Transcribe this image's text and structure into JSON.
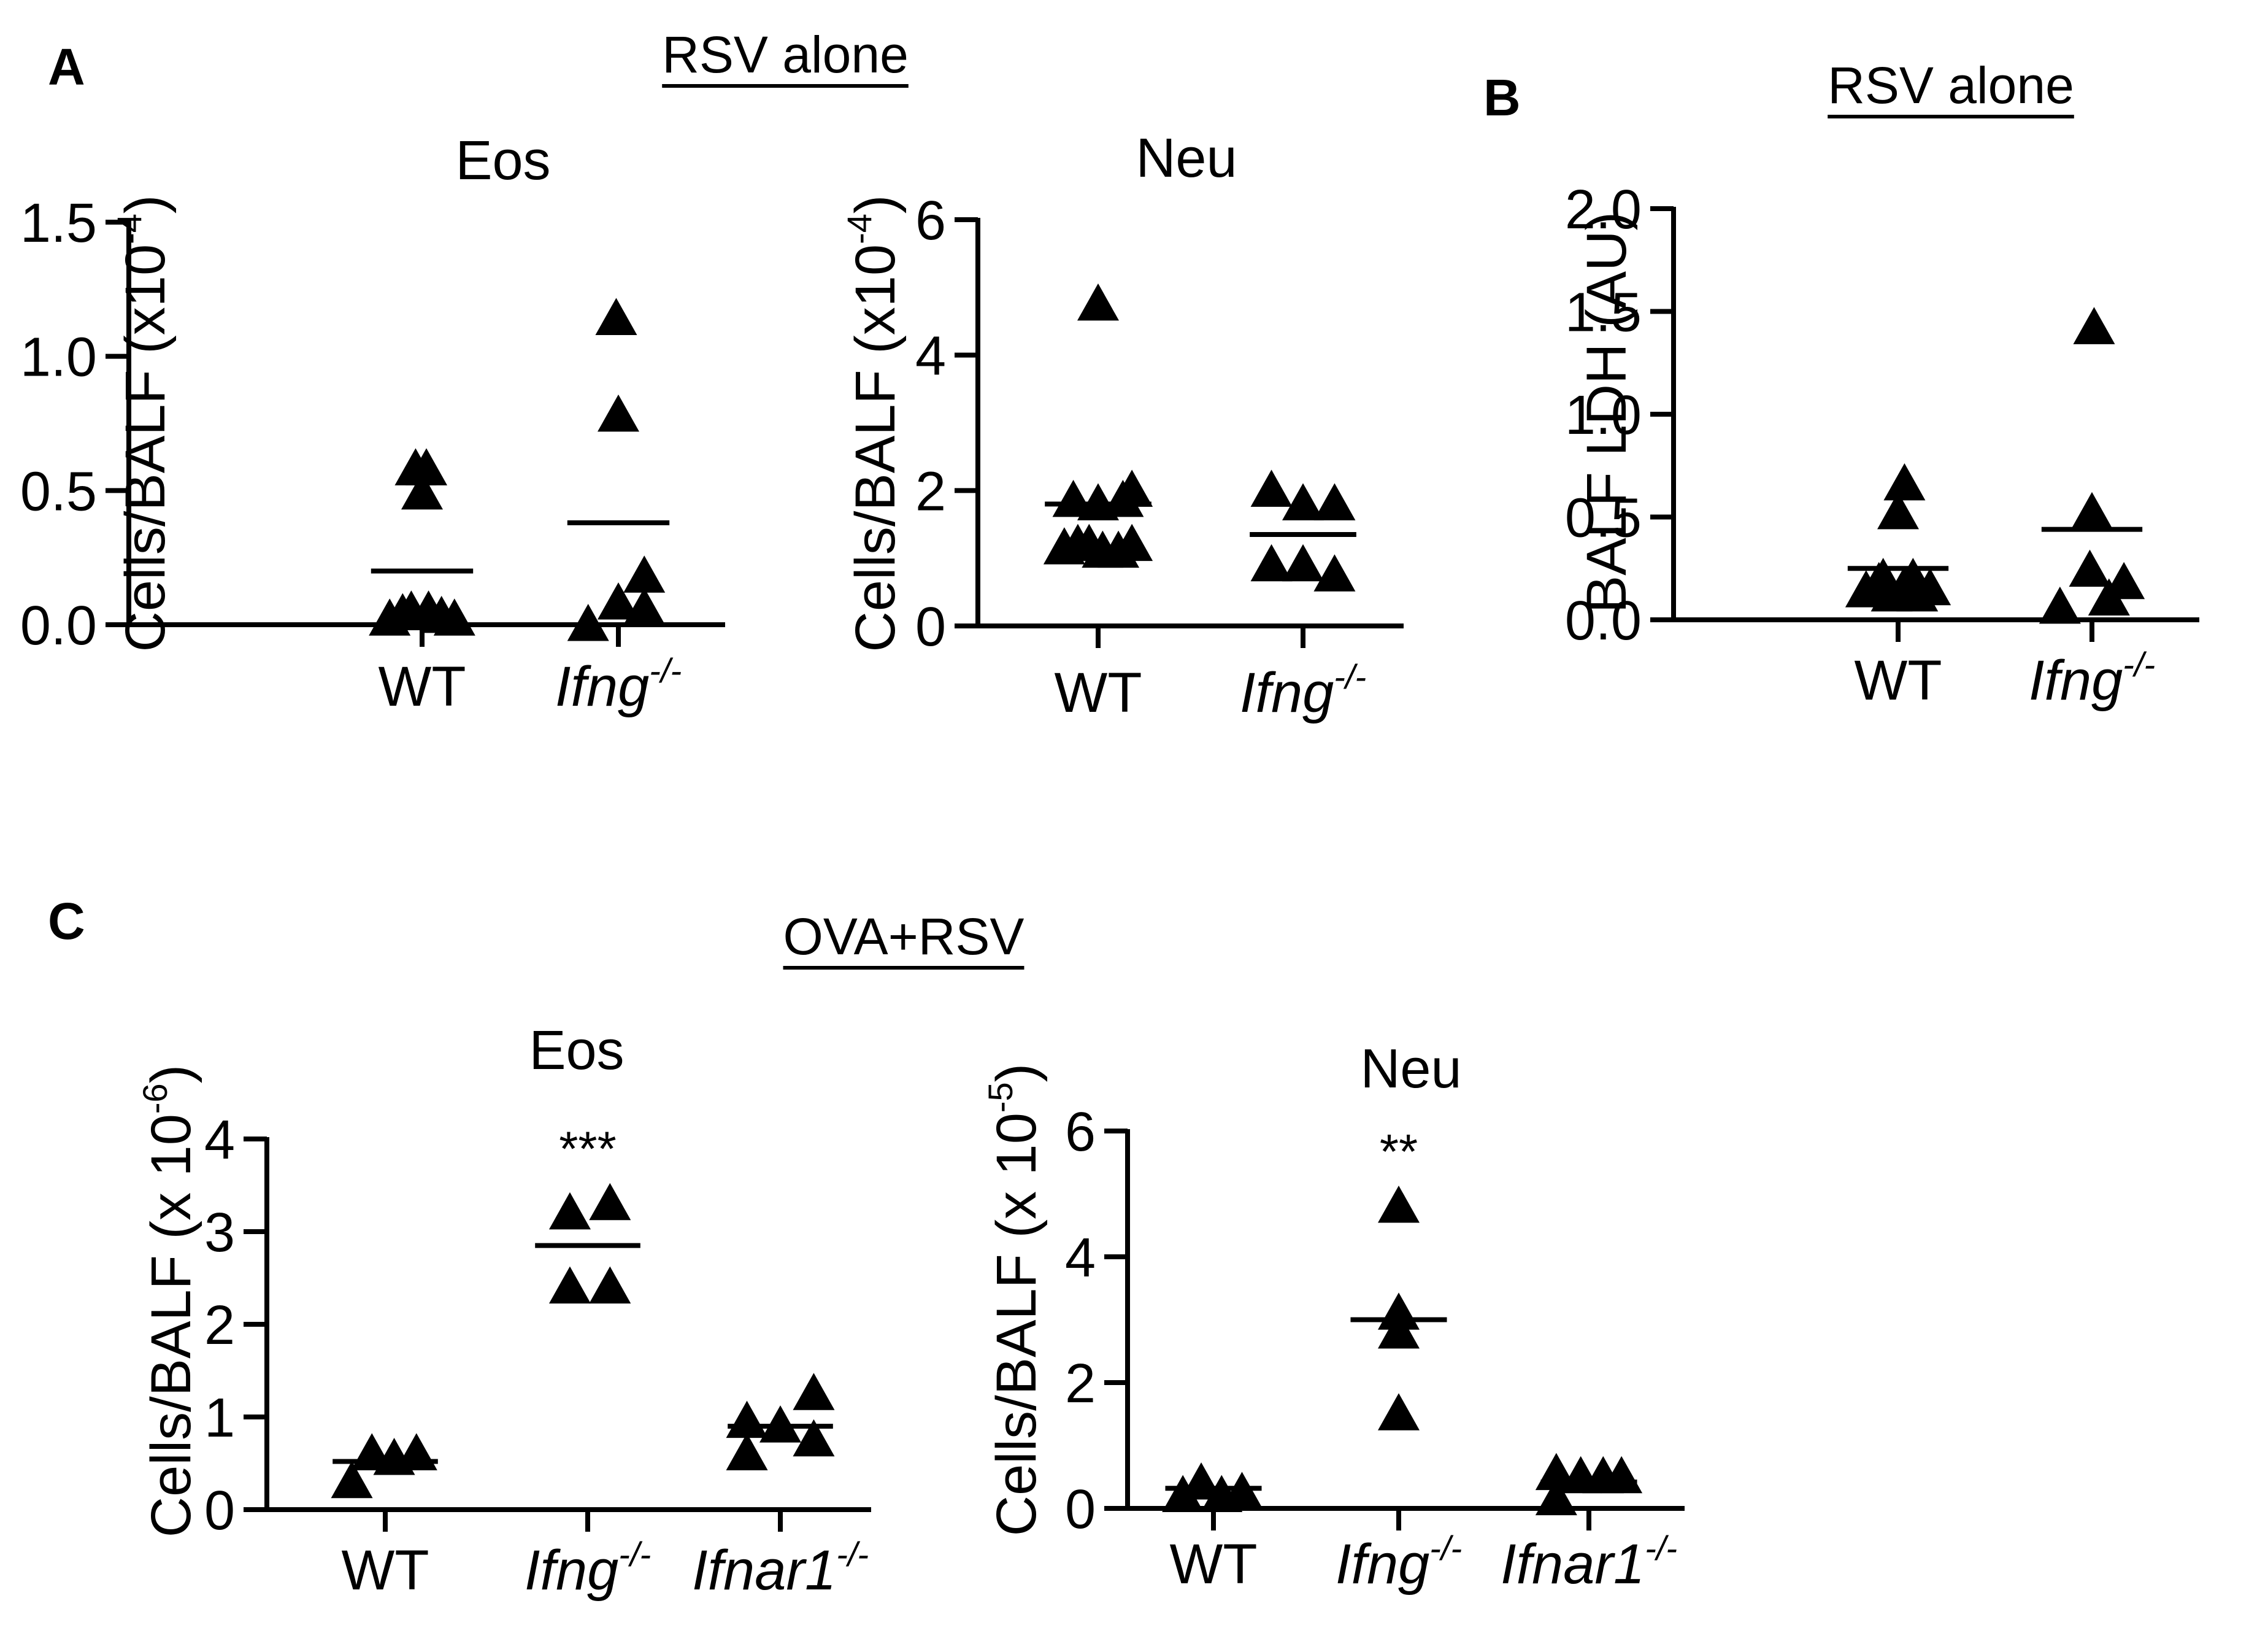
{
  "headers": [
    {
      "text": "RSV alone",
      "cx": 1280,
      "y": 118,
      "underline": true
    },
    {
      "text": "RSV alone",
      "cx": 3180,
      "y": 168,
      "underline": true
    },
    {
      "text": "OVA+RSV",
      "cx": 1473,
      "y": 1555,
      "underline": true
    }
  ],
  "panels": [
    {
      "letter": "A"
    },
    {
      "letter": "B"
    },
    {
      "letter": "C"
    }
  ],
  "chart_data": [
    {
      "type": "scatter",
      "panel": "A",
      "title": "Eos",
      "ylabel": {
        "main": "Cells/BALF (x10",
        "sup": "-4",
        "close": ")"
      },
      "ylim": [
        0,
        1.5
      ],
      "yticks": [
        "0.0",
        "0.5",
        "1.0",
        "1.5"
      ],
      "yticks_values": [
        0,
        0.5,
        1.0,
        1.5
      ],
      "categories": [
        {
          "main": "WT",
          "sup": "",
          "italic": false
        },
        {
          "main": "Ifng",
          "sup": "-/-",
          "italic": true
        }
      ],
      "series": [
        {
          "points": [
            [
              -0.3,
              0.02
            ],
            [
              -0.18,
              0.04
            ],
            [
              -0.06,
              0.58
            ],
            [
              0.04,
              0.58
            ],
            [
              0.0,
              0.49
            ],
            [
              -0.1,
              0.05
            ],
            [
              0.06,
              0.05
            ],
            [
              0.18,
              0.03
            ],
            [
              0.3,
              0.02
            ]
          ],
          "mean": 0.2
        },
        {
          "points": [
            [
              -0.28,
              0.0
            ],
            [
              -0.02,
              1.14
            ],
            [
              0.0,
              0.78
            ],
            [
              0.0,
              0.08
            ],
            [
              0.24,
              0.18
            ],
            [
              0.24,
              0.06
            ]
          ],
          "mean": 0.38
        }
      ],
      "markers": [
        null,
        null
      ]
    },
    {
      "type": "scatter",
      "panel": "A",
      "title": "Neu",
      "ylabel": {
        "main": "Cells/BALF (x10",
        "sup": "-4",
        "close": ")"
      },
      "ylim": [
        0,
        6
      ],
      "yticks": [
        "0",
        "2",
        "4",
        "6"
      ],
      "yticks_values": [
        0,
        2,
        4,
        6
      ],
      "categories": [
        {
          "main": "WT",
          "sup": "",
          "italic": false
        },
        {
          "main": "Ifng",
          "sup": "-/-",
          "italic": true
        }
      ],
      "series": [
        {
          "points": [
            [
              -0.3,
              1.15
            ],
            [
              -0.18,
              1.2
            ],
            [
              -0.08,
              1.2
            ],
            [
              0.04,
              1.1
            ],
            [
              0.18,
              1.1
            ],
            [
              0.3,
              1.2
            ],
            [
              -0.22,
              1.85
            ],
            [
              0.0,
              1.8
            ],
            [
              0.22,
              1.85
            ],
            [
              0.3,
              2.0
            ],
            [
              0.0,
              4.75
            ]
          ],
          "mean": 1.8
        },
        {
          "points": [
            [
              -0.28,
              2.0
            ],
            [
              -0.28,
              0.9
            ],
            [
              0.0,
              1.8
            ],
            [
              0.0,
              0.9
            ],
            [
              0.28,
              1.8
            ],
            [
              0.28,
              0.75
            ]
          ],
          "mean": 1.35
        }
      ],
      "markers": [
        null,
        null
      ]
    },
    {
      "type": "scatter",
      "panel": "B",
      "title": "",
      "ylabel": {
        "main": "BALF LDH (AU)",
        "sup": "",
        "close": ""
      },
      "ylim": [
        0,
        2.0
      ],
      "yticks": [
        "0.0",
        "0.5",
        "1.0",
        "1.5",
        "2.0"
      ],
      "yticks_values": [
        0,
        0.5,
        1.0,
        1.5,
        2.0
      ],
      "categories": [
        {
          "main": "WT",
          "sup": "",
          "italic": false
        },
        {
          "main": "Ifng",
          "sup": "-/-",
          "italic": true
        }
      ],
      "series": [
        {
          "points": [
            [
              -0.3,
              0.14
            ],
            [
              -0.18,
              0.18
            ],
            [
              -0.06,
              0.12
            ],
            [
              0.06,
              0.16
            ],
            [
              0.18,
              0.12
            ],
            [
              0.3,
              0.15
            ],
            [
              -0.14,
              0.2
            ],
            [
              0.14,
              0.2
            ],
            [
              0.0,
              0.52
            ],
            [
              0.06,
              0.66
            ]
          ],
          "mean": 0.25
        },
        {
          "points": [
            [
              -0.3,
              0.06
            ],
            [
              -0.02,
              0.24
            ],
            [
              0.0,
              0.52
            ],
            [
              0.02,
              1.42
            ],
            [
              0.16,
              0.1
            ],
            [
              0.3,
              0.18
            ]
          ],
          "mean": 0.44
        }
      ],
      "markers": [
        null,
        null
      ]
    },
    {
      "type": "scatter",
      "panel": "C",
      "title": "Eos",
      "ylabel": {
        "main": "Cells/BALF (x 10",
        "sup": "-6",
        "close": ")"
      },
      "ylim": [
        0,
        4
      ],
      "yticks": [
        "0",
        "1",
        "2",
        "3",
        "4"
      ],
      "yticks_values": [
        0,
        1,
        2,
        3,
        4
      ],
      "categories": [
        {
          "main": "WT",
          "sup": "",
          "italic": false
        },
        {
          "main": "Ifng",
          "sup": "-/-",
          "italic": true
        },
        {
          "main": "Ifnar1",
          "sup": "-/-",
          "italic": true
        }
      ],
      "series": [
        {
          "points": [
            [
              -0.3,
              0.3
            ],
            [
              -0.12,
              0.6
            ],
            [
              0.08,
              0.55
            ],
            [
              0.28,
              0.6
            ]
          ],
          "mean": 0.52
        },
        {
          "points": [
            [
              -0.16,
              2.4
            ],
            [
              0.2,
              2.4
            ],
            [
              -0.16,
              3.2
            ],
            [
              0.2,
              3.3
            ]
          ],
          "mean": 2.85
        },
        {
          "points": [
            [
              -0.3,
              0.6
            ],
            [
              -0.3,
              0.95
            ],
            [
              0.0,
              0.9
            ],
            [
              0.3,
              0.75
            ],
            [
              0.3,
              1.25
            ]
          ],
          "mean": 0.9
        }
      ],
      "markers": [
        null,
        "***",
        null
      ]
    },
    {
      "type": "scatter",
      "panel": "C",
      "title": "Neu",
      "ylabel": {
        "main": "Cells/BALF (x 10",
        "sup": "-5",
        "close": ")"
      },
      "ylim": [
        0,
        6
      ],
      "yticks": [
        "0",
        "2",
        "4",
        "6"
      ],
      "yticks_values": [
        0,
        2,
        4,
        6
      ],
      "categories": [
        {
          "main": "WT",
          "sup": "",
          "italic": false
        },
        {
          "main": "Ifng",
          "sup": "-/-",
          "italic": true
        },
        {
          "main": "Ifnar1",
          "sup": "-/-",
          "italic": true
        }
      ],
      "series": [
        {
          "points": [
            [
              -0.3,
              0.2
            ],
            [
              -0.12,
              0.4
            ],
            [
              0.08,
              0.2
            ],
            [
              0.28,
              0.25
            ]
          ],
          "mean": 0.32
        },
        {
          "points": [
            [
              0.0,
              1.5
            ],
            [
              0.0,
              2.8
            ],
            [
              0.0,
              3.1
            ],
            [
              0.0,
              4.8
            ]
          ],
          "mean": 3.0
        },
        {
          "points": [
            [
              -0.32,
              0.15
            ],
            [
              -0.32,
              0.55
            ],
            [
              -0.08,
              0.5
            ],
            [
              0.14,
              0.5
            ],
            [
              0.32,
              0.5
            ]
          ],
          "mean": 0.42
        }
      ],
      "markers": [
        null,
        "**",
        null
      ]
    }
  ]
}
